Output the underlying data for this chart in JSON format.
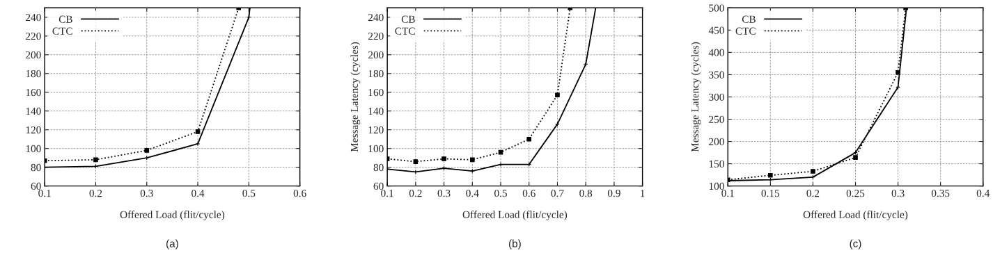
{
  "chart_data": [
    {
      "type": "line",
      "xlabel": "Offered Load (flit/cycle)",
      "annotations": [
        "(a)"
      ],
      "xlim": [
        0.1,
        0.6
      ],
      "ylim": [
        60,
        250
      ],
      "xticks": [
        0.1,
        0.2,
        0.3,
        0.4,
        0.5,
        0.6
      ],
      "yticks": [
        60,
        80,
        100,
        120,
        140,
        160,
        180,
        200,
        220,
        240
      ],
      "grid": true,
      "legend": "top left",
      "series": [
        {
          "name": "CB",
          "color": "#000000",
          "marker": "cross",
          "line_style": "solid",
          "x": [
            0.1,
            0.2,
            0.3,
            0.4,
            0.5,
            0.502
          ],
          "values": [
            80,
            81,
            90,
            105,
            240,
            250
          ]
        },
        {
          "name": "CTC",
          "color": "#000000",
          "marker": "square",
          "line_style": "dotted",
          "x": [
            0.1,
            0.2,
            0.3,
            0.4,
            0.48
          ],
          "values": [
            87,
            88,
            98,
            118,
            250
          ]
        }
      ]
    },
    {
      "type": "line",
      "xlabel": "Offered Load (flit/cycle)",
      "ylabel": "Message Latency (cycles)",
      "annotations": [
        "(b)"
      ],
      "xlim": [
        0.1,
        1
      ],
      "ylim": [
        60,
        250
      ],
      "xticks": [
        0.1,
        0.2,
        0.3,
        0.4,
        0.5,
        0.6,
        0.7,
        0.8,
        0.9,
        1
      ],
      "yticks": [
        60,
        80,
        100,
        120,
        140,
        160,
        180,
        200,
        220,
        240
      ],
      "grid": true,
      "legend": "top left",
      "series": [
        {
          "name": "CB",
          "color": "#000000",
          "marker": "cross",
          "line_style": "solid",
          "x": [
            0.1,
            0.2,
            0.3,
            0.4,
            0.5,
            0.6,
            0.7,
            0.8,
            0.835
          ],
          "values": [
            78,
            75,
            79,
            76,
            83,
            83,
            126,
            190,
            250
          ]
        },
        {
          "name": "CTC",
          "color": "#000000",
          "marker": "square",
          "line_style": "dotted",
          "x": [
            0.1,
            0.2,
            0.3,
            0.4,
            0.5,
            0.6,
            0.7,
            0.745
          ],
          "values": [
            89,
            86,
            89,
            88,
            96,
            110,
            157,
            250
          ]
        }
      ]
    },
    {
      "type": "line",
      "xlabel": "Offered Load (flit/cycle)",
      "ylabel": "Message Latency (cycles)",
      "annotations": [
        "(c)"
      ],
      "xlim": [
        0.1,
        0.4
      ],
      "ylim": [
        100,
        500
      ],
      "xticks": [
        0.1,
        0.15,
        0.2,
        0.25,
        0.3,
        0.35,
        0.4
      ],
      "yticks": [
        100,
        150,
        200,
        250,
        300,
        350,
        400,
        450,
        500
      ],
      "grid": true,
      "legend": "top left",
      "series": [
        {
          "name": "CB",
          "color": "#000000",
          "marker": "cross",
          "line_style": "solid",
          "x": [
            0.1,
            0.15,
            0.2,
            0.25,
            0.3,
            0.31
          ],
          "values": [
            112,
            114,
            120,
            175,
            322,
            500
          ]
        },
        {
          "name": "CTC",
          "color": "#000000",
          "marker": "square",
          "line_style": "dotted",
          "x": [
            0.1,
            0.15,
            0.2,
            0.25,
            0.3,
            0.309
          ],
          "values": [
            114,
            124,
            133,
            164,
            355,
            500
          ]
        }
      ]
    }
  ]
}
